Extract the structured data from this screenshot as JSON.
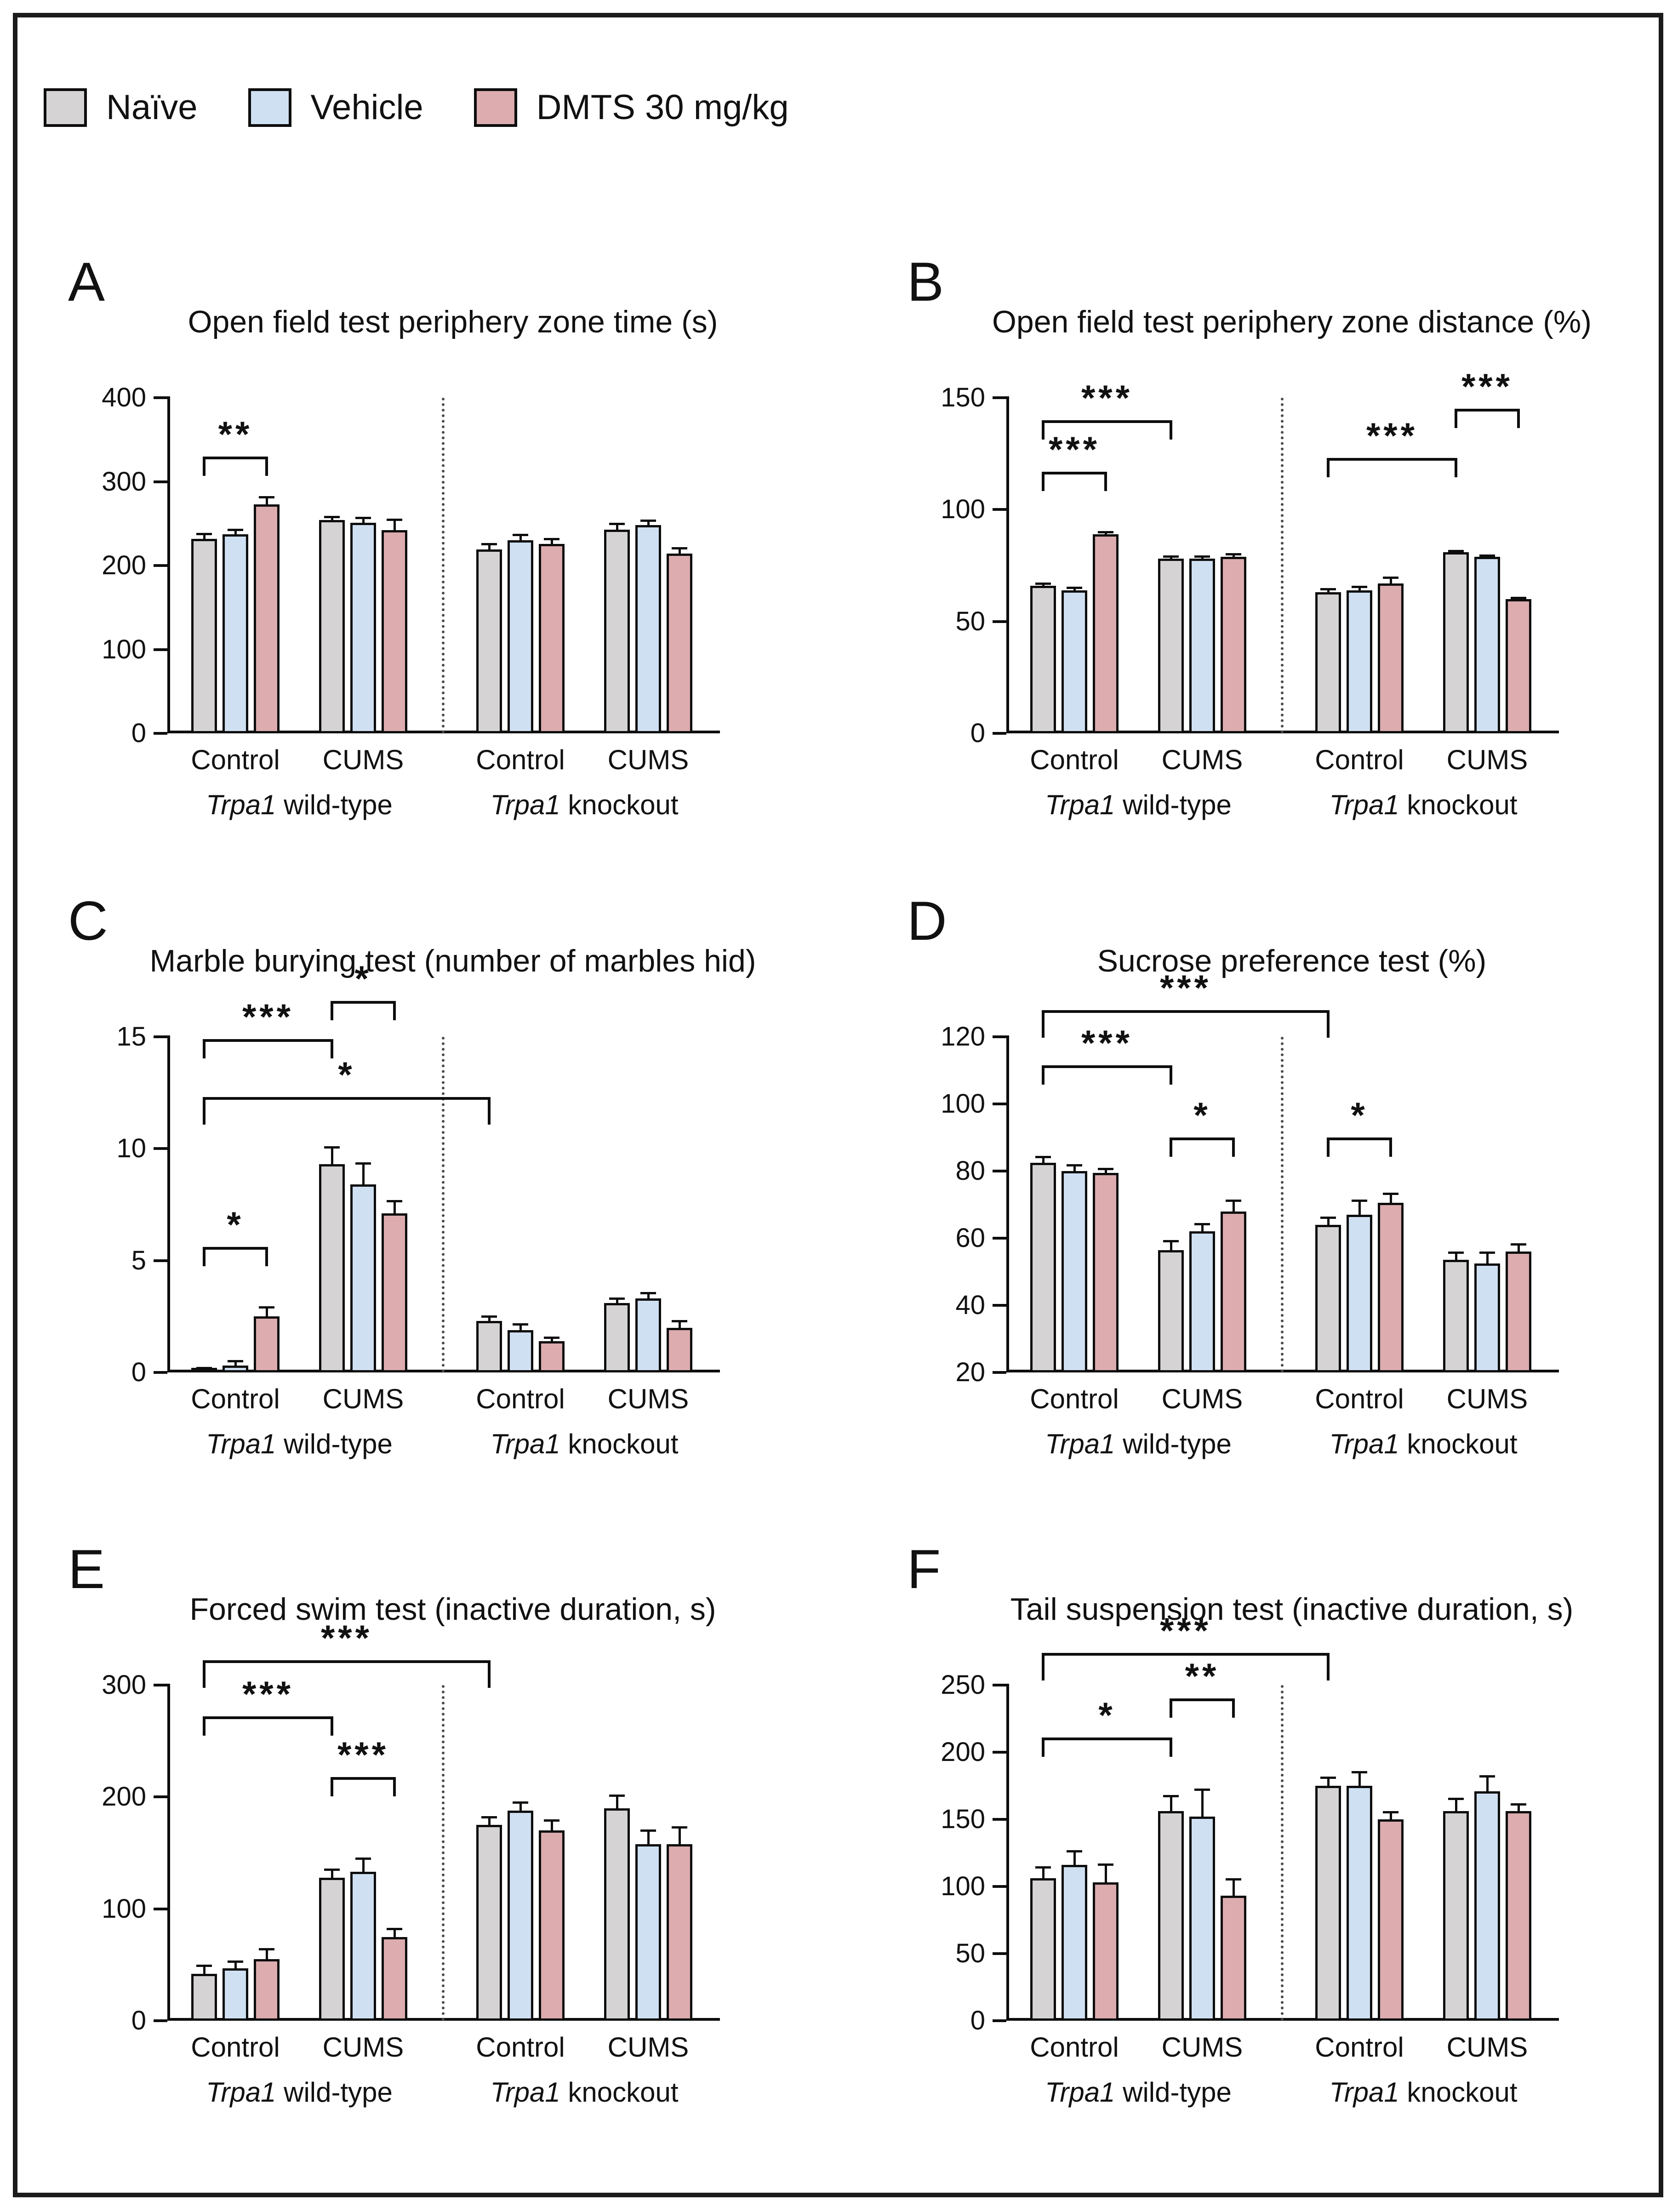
{
  "figure": {
    "legend": [
      {
        "label": "Naïve",
        "color": "#d5d3d3",
        "swatch": "gray-swatch"
      },
      {
        "label": "Vehicle",
        "color": "#cfe0f2",
        "swatch": "blue-swatch"
      },
      {
        "label": "DMTS 30 mg/kg",
        "color": "#dcacae",
        "swatch": "pink-swatch"
      }
    ]
  },
  "chart_data": [
    {
      "panel": "A",
      "type": "bar",
      "title": "Open field test periphery zone time (s)",
      "ylabel": "",
      "xlabel": "",
      "ymin": 0,
      "ymax": 400,
      "yticks": [
        0,
        100,
        200,
        300,
        400
      ],
      "grid": false,
      "series": [
        "Naïve",
        "Vehicle",
        "DMTS 30 mg/kg"
      ],
      "groups": [
        "Control",
        "CUMS",
        "Control",
        "CUMS"
      ],
      "genotypes": [
        {
          "italic": "Trpa1",
          "rest": " wild-type"
        },
        {
          "italic": "Trpa1",
          "rest": " knockout"
        }
      ],
      "values": [
        [
          232,
          237,
          273
        ],
        [
          254,
          251,
          242
        ],
        [
          219,
          230,
          226
        ],
        [
          243,
          248,
          214
        ]
      ],
      "errors": [
        [
          7,
          7,
          10
        ],
        [
          5,
          7,
          14
        ],
        [
          8,
          8,
          7
        ],
        [
          8,
          7,
          8
        ]
      ],
      "brackets": [
        {
          "from": [
            0,
            0
          ],
          "to": [
            0,
            2
          ],
          "y": 330,
          "label": "**"
        }
      ]
    },
    {
      "panel": "B",
      "type": "bar",
      "title": "Open field test periphery zone distance (%)",
      "ylabel": "",
      "xlabel": "",
      "ymin": 0,
      "ymax": 150,
      "yticks": [
        0,
        50,
        100,
        150
      ],
      "grid": false,
      "series": [
        "Naïve",
        "Vehicle",
        "DMTS 30 mg/kg"
      ],
      "groups": [
        "Control",
        "CUMS",
        "Control",
        "CUMS"
      ],
      "genotypes": [
        {
          "italic": "Trpa1",
          "rest": " wild-type"
        },
        {
          "italic": "Trpa1",
          "rest": " knockout"
        }
      ],
      "values": [
        [
          66,
          64,
          89
        ],
        [
          78,
          78,
          79
        ],
        [
          63,
          64,
          67
        ],
        [
          81,
          79,
          60
        ]
      ],
      "errors": [
        [
          1.5,
          1.5,
          1.5
        ],
        [
          1.5,
          1.5,
          1.5
        ],
        [
          2,
          2,
          3
        ],
        [
          1,
          1,
          1
        ]
      ],
      "brackets": [
        {
          "from": [
            0,
            0
          ],
          "to": [
            0,
            2
          ],
          "y": 117,
          "label": "***"
        },
        {
          "from": [
            0,
            0
          ],
          "to": [
            1,
            0
          ],
          "y": 140,
          "label": "***"
        },
        {
          "from": [
            2,
            0
          ],
          "to": [
            3,
            0
          ],
          "y": 123,
          "label": "***"
        },
        {
          "from": [
            3,
            0
          ],
          "to": [
            3,
            2
          ],
          "y": 145,
          "label": "***"
        }
      ]
    },
    {
      "panel": "C",
      "type": "bar",
      "title": "Marble burying test (number of marbles hid)",
      "ylabel": "",
      "xlabel": "",
      "ymin": 0,
      "ymax": 15,
      "yticks": [
        0,
        5,
        10,
        15
      ],
      "grid": false,
      "series": [
        "Naïve",
        "Vehicle",
        "DMTS 30 mg/kg"
      ],
      "groups": [
        "Control",
        "CUMS",
        "Control",
        "CUMS"
      ],
      "genotypes": [
        {
          "italic": "Trpa1",
          "rest": " wild-type"
        },
        {
          "italic": "Trpa1",
          "rest": " knockout"
        }
      ],
      "values": [
        [
          0.15,
          0.3,
          2.5
        ],
        [
          9.3,
          8.4,
          7.1
        ],
        [
          2.3,
          1.9,
          1.4
        ],
        [
          3.1,
          3.3,
          2.0
        ]
      ],
      "errors": [
        [
          0.1,
          0.25,
          0.45
        ],
        [
          0.8,
          1.0,
          0.6
        ],
        [
          0.25,
          0.3,
          0.2
        ],
        [
          0.25,
          0.3,
          0.35
        ]
      ],
      "brackets": [
        {
          "from": [
            0,
            0
          ],
          "to": [
            0,
            2
          ],
          "y": 5.6,
          "label": "*"
        },
        {
          "from": [
            0,
            0
          ],
          "to": [
            1,
            0
          ],
          "y": 14.9,
          "label": "***"
        },
        {
          "from": [
            1,
            0
          ],
          "to": [
            1,
            2
          ],
          "y": 16.6,
          "label": "*"
        },
        {
          "from": [
            0,
            0
          ],
          "to": [
            2,
            0
          ],
          "y": 12.3,
          "label": "*",
          "drop": 60
        }
      ]
    },
    {
      "panel": "D",
      "type": "bar",
      "title": "Sucrose preference test (%)",
      "ylabel": "",
      "xlabel": "",
      "ymin": 20,
      "ymax": 120,
      "yticks": [
        20,
        40,
        60,
        80,
        100,
        120
      ],
      "grid": false,
      "series": [
        "Naïve",
        "Vehicle",
        "DMTS 30 mg/kg"
      ],
      "groups": [
        "Control",
        "CUMS",
        "Control",
        "CUMS"
      ],
      "genotypes": [
        {
          "italic": "Trpa1",
          "rest": " wild-type"
        },
        {
          "italic": "Trpa1",
          "rest": " knockout"
        }
      ],
      "values": [
        [
          82.5,
          80,
          79.5
        ],
        [
          56.5,
          62,
          68
        ],
        [
          64,
          67,
          70.5
        ],
        [
          53.5,
          52.5,
          56
        ]
      ],
      "errors": [
        [
          2,
          2,
          1.5
        ],
        [
          3,
          2.5,
          3.5
        ],
        [
          2.5,
          4.5,
          3
        ],
        [
          2.5,
          3.5,
          2.5
        ]
      ],
      "brackets": [
        {
          "from": [
            0,
            0
          ],
          "to": [
            1,
            0
          ],
          "y": 111.5,
          "label": "***"
        },
        {
          "from": [
            0,
            0
          ],
          "to": [
            2,
            0
          ],
          "y": 128,
          "label": "***",
          "drop": 60
        },
        {
          "from": [
            1,
            0
          ],
          "to": [
            1,
            2
          ],
          "y": 90,
          "label": "*"
        },
        {
          "from": [
            2,
            0
          ],
          "to": [
            2,
            2
          ],
          "y": 90,
          "label": "*"
        }
      ]
    },
    {
      "panel": "E",
      "type": "bar",
      "title": "Forced swim test (inactive duration, s)",
      "ylabel": "",
      "xlabel": "",
      "ymin": 0,
      "ymax": 300,
      "yticks": [
        0,
        100,
        200,
        300
      ],
      "grid": false,
      "series": [
        "Naïve",
        "Vehicle",
        "DMTS 30 mg/kg"
      ],
      "groups": [
        "Control",
        "CUMS",
        "Control",
        "CUMS"
      ],
      "genotypes": [
        {
          "italic": "Trpa1",
          "rest": " wild-type"
        },
        {
          "italic": "Trpa1",
          "rest": " knockout"
        }
      ],
      "values": [
        [
          42,
          47,
          55
        ],
        [
          128,
          133,
          75
        ],
        [
          175,
          188,
          170
        ],
        [
          190,
          158,
          158
        ]
      ],
      "errors": [
        [
          8,
          7,
          10
        ],
        [
          8,
          13,
          8
        ],
        [
          8,
          8,
          10
        ],
        [
          12,
          13,
          16
        ]
      ],
      "brackets": [
        {
          "from": [
            0,
            0
          ],
          "to": [
            1,
            0
          ],
          "y": 272,
          "label": "***"
        },
        {
          "from": [
            0,
            0
          ],
          "to": [
            2,
            0
          ],
          "y": 322,
          "label": "***",
          "drop": 60
        },
        {
          "from": [
            1,
            0
          ],
          "to": [
            1,
            2
          ],
          "y": 218,
          "label": "***"
        }
      ]
    },
    {
      "panel": "F",
      "type": "bar",
      "title": "Tail suspension test (inactive duration, s)",
      "ylabel": "",
      "xlabel": "",
      "ymin": 0,
      "ymax": 250,
      "yticks": [
        0,
        50,
        100,
        150,
        200,
        250
      ],
      "grid": false,
      "series": [
        "Naïve",
        "Vehicle",
        "DMTS 30 mg/kg"
      ],
      "groups": [
        "Control",
        "CUMS",
        "Control",
        "CUMS"
      ],
      "genotypes": [
        {
          "italic": "Trpa1",
          "rest": " wild-type"
        },
        {
          "italic": "Trpa1",
          "rest": " knockout"
        }
      ],
      "values": [
        [
          106,
          116,
          103
        ],
        [
          156,
          152,
          93
        ],
        [
          175,
          175,
          150
        ],
        [
          156,
          171,
          156
        ]
      ],
      "errors": [
        [
          9,
          11,
          14
        ],
        [
          12,
          21,
          13
        ],
        [
          7,
          11,
          6
        ],
        [
          10,
          12,
          6
        ]
      ],
      "brackets": [
        {
          "from": [
            0,
            0
          ],
          "to": [
            1,
            0
          ],
          "y": 211,
          "label": "*"
        },
        {
          "from": [
            1,
            0
          ],
          "to": [
            1,
            2
          ],
          "y": 240,
          "label": "**"
        },
        {
          "from": [
            0,
            0
          ],
          "to": [
            2,
            0
          ],
          "y": 274,
          "label": "***",
          "drop": 60
        }
      ]
    }
  ]
}
